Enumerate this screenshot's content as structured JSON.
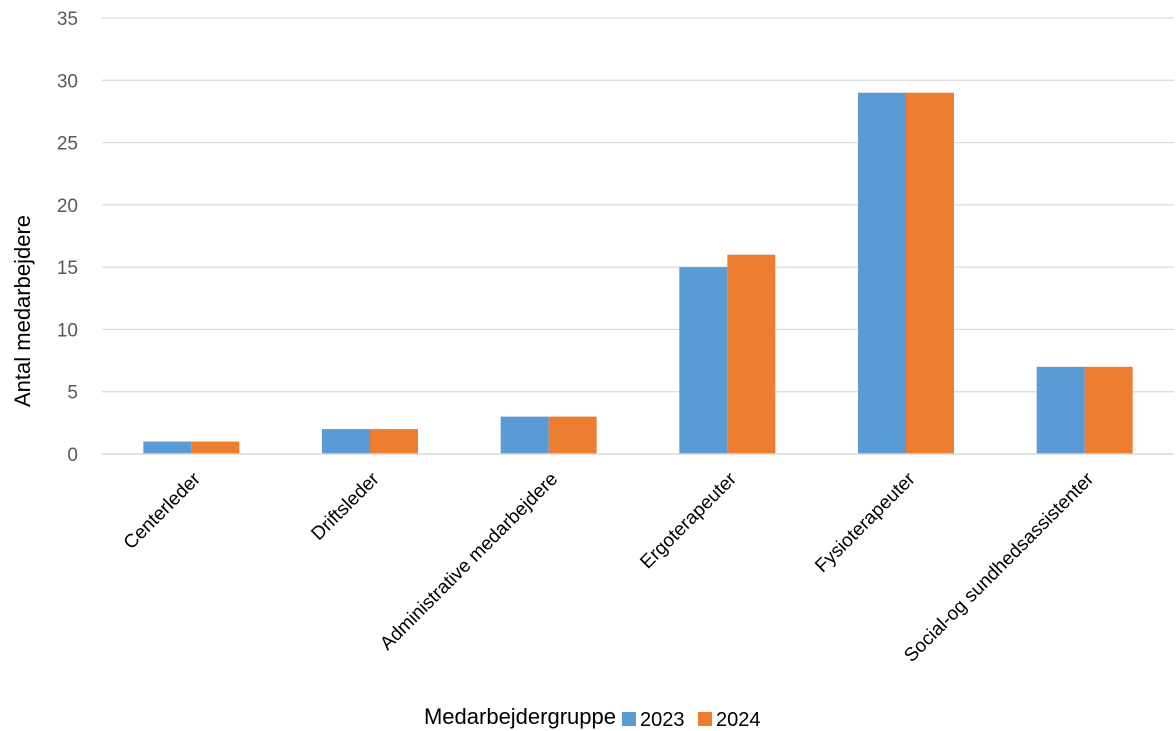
{
  "chart_data": {
    "type": "bar",
    "categories": [
      "Centerleder",
      "Driftsleder",
      "Administrative medarbejdere",
      "Ergoterapeuter",
      "Fysioterapeuter",
      "Social-og sundhedsassistenter"
    ],
    "series": [
      {
        "name": "2023",
        "values": [
          1,
          2,
          3,
          15,
          29,
          7
        ],
        "color": "#5B9BD5"
      },
      {
        "name": "2024",
        "values": [
          1,
          2,
          3,
          16,
          29,
          7
        ],
        "color": "#ED7D31"
      }
    ],
    "xlabel": "Medarbejdergruppe",
    "ylabel": "Antal medarbejdere",
    "ylim": [
      0,
      35
    ],
    "yticks": [
      0,
      5,
      10,
      15,
      20,
      25,
      30,
      35
    ],
    "grid": true,
    "legend": "bottom"
  }
}
